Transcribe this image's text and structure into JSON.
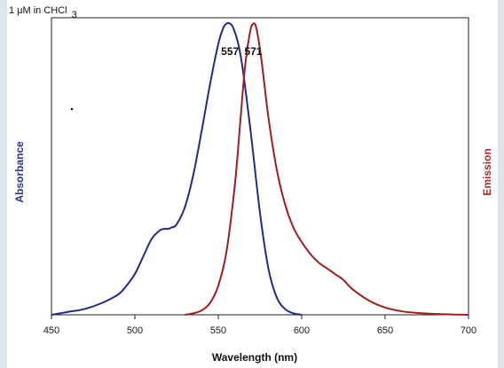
{
  "chart_data": {
    "type": "line",
    "title": "",
    "annotation": {
      "main": "1 μM in CHCl",
      "sub": "3"
    },
    "xlabel": "Wavelength (nm)",
    "ylabel_left": "Absorbance",
    "ylabel_right": "Emission",
    "xlim": [
      450,
      700
    ],
    "ylim": [
      0,
      1.02
    ],
    "xticks": [
      "450",
      "500",
      "550",
      "600",
      "650",
      "700"
    ],
    "grid": false,
    "peak_labels": [
      {
        "text": "557",
        "x": 557
      },
      {
        "text": "571",
        "x": 571
      }
    ],
    "colors": {
      "absorbance": "#1f2a8c",
      "emission": "#a31d1d",
      "left_axis_title": "#2a3591",
      "right_axis_title": "#b42a2a",
      "edge_strip": "#dde3ef"
    },
    "series": [
      {
        "key": "absorbance",
        "x": [
          450,
          460,
          470,
          480,
          490,
          495,
          500,
          505,
          510,
          515,
          518,
          520,
          522,
          525,
          530,
          535,
          540,
          545,
          550,
          553,
          555,
          557,
          559,
          562,
          565,
          570,
          575,
          580,
          585,
          590,
          595,
          600
        ],
        "y": [
          0.0,
          0.01,
          0.02,
          0.04,
          0.07,
          0.1,
          0.14,
          0.2,
          0.26,
          0.29,
          0.295,
          0.295,
          0.3,
          0.31,
          0.37,
          0.48,
          0.63,
          0.79,
          0.93,
          0.985,
          1.0,
          1.0,
          0.985,
          0.93,
          0.83,
          0.6,
          0.35,
          0.16,
          0.06,
          0.02,
          0.005,
          0.0
        ]
      },
      {
        "key": "emission",
        "x": [
          530,
          535,
          540,
          545,
          550,
          555,
          560,
          563,
          566,
          569,
          571,
          573,
          576,
          580,
          585,
          590,
          595,
          600,
          605,
          610,
          615,
          620,
          625,
          630,
          640,
          650,
          660,
          670,
          680,
          690,
          700
        ],
        "y": [
          0.0,
          0.005,
          0.015,
          0.04,
          0.1,
          0.22,
          0.45,
          0.65,
          0.85,
          0.97,
          1.0,
          0.98,
          0.87,
          0.68,
          0.5,
          0.38,
          0.3,
          0.25,
          0.21,
          0.18,
          0.16,
          0.14,
          0.12,
          0.09,
          0.05,
          0.025,
          0.012,
          0.006,
          0.003,
          0.001,
          0.0
        ]
      }
    ]
  }
}
